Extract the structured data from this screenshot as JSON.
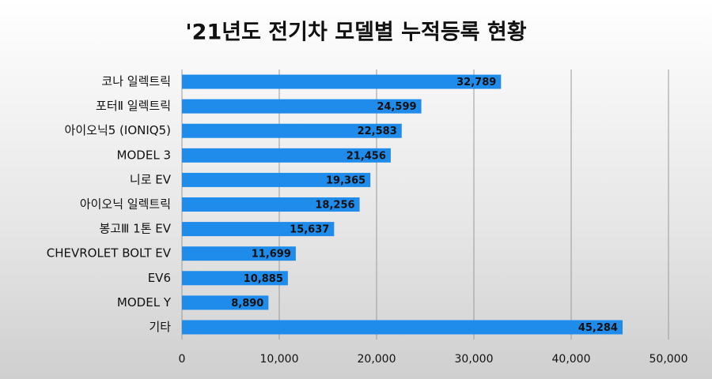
{
  "chart_data": {
    "type": "barh",
    "title": "'21년도 전기차 모델별 누적등록 현황",
    "categories": [
      "코나 일렉트릭",
      "포터Ⅱ 일렉트릭",
      "아이오닉5 (IONIQ5)",
      "MODEL 3",
      "니로 EV",
      "아이오닉 일렉트릭",
      "봉고Ⅲ 1톤 EV",
      "CHEVROLET BOLT EV",
      "EV6",
      "MODEL Y",
      "기타"
    ],
    "values": [
      32789,
      24599,
      22583,
      21456,
      19365,
      18256,
      15637,
      11699,
      10885,
      8890,
      45284
    ],
    "value_labels": [
      "32,789",
      "24,599",
      "22,583",
      "21,456",
      "19,365",
      "18,256",
      "15,637",
      "11,699",
      "10,885",
      "8,890",
      "45,284"
    ],
    "color": "#1f8ceb",
    "xlim": [
      0,
      50000
    ],
    "xticks": [
      0,
      {
        "value": 10000,
        "label": "10,000"
      },
      {
        "value": 20000,
        "label": "20,000"
      },
      {
        "value": 30000,
        "label": "30,000"
      },
      {
        "value": 40000,
        "label": "40,000"
      },
      {
        "value": 50000,
        "label": "50,000"
      }
    ],
    "grid": true
  }
}
